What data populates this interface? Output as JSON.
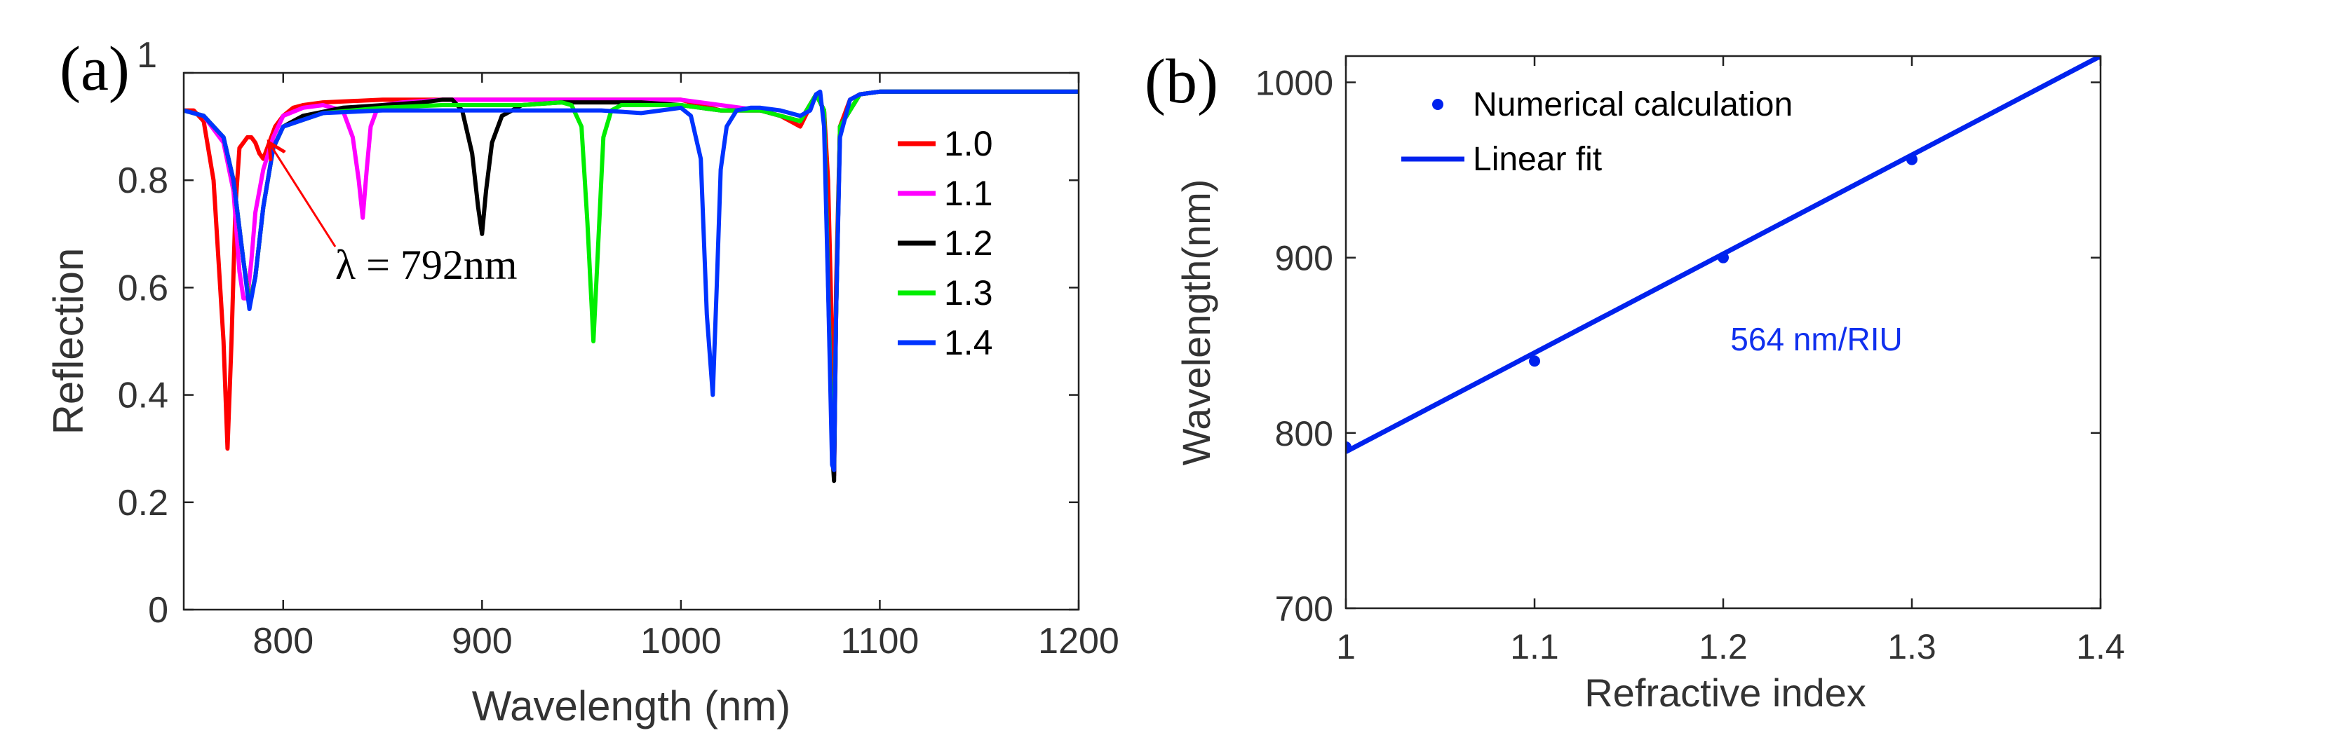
{
  "chart_data": [
    {
      "type": "line",
      "panel_label": "(a)",
      "xlabel": "Wavelength (nm)",
      "ylabel": "Reflection",
      "xlim": [
        750,
        1200
      ],
      "ylim": [
        0,
        1
      ],
      "xticks": [
        800,
        900,
        1000,
        1100,
        1200
      ],
      "yticks": [
        0,
        0.2,
        0.4,
        0.6,
        0.8,
        1
      ],
      "ytick_labels": [
        "0",
        "0.2",
        "0.4",
        "0.6",
        "0.8",
        "1"
      ],
      "legend_position": "right",
      "annotation": {
        "text": "λ = 792nm",
        "arrow_to": [
          792,
          0.88
        ]
      },
      "series": [
        {
          "name": "1.0",
          "color": "#ff0000",
          "x": [
            750,
            755,
            760,
            765,
            770,
            772,
            774,
            776,
            778,
            780,
            782,
            784,
            786,
            788,
            790,
            792,
            796,
            800,
            805,
            810,
            820,
            850,
            880,
            900,
            920,
            950,
            980,
            1000,
            1010,
            1020,
            1030,
            1040,
            1050,
            1055,
            1060,
            1064,
            1068,
            1072,
            1074,
            1076,
            1077,
            1078,
            1080,
            1085,
            1090,
            1100,
            1120,
            1150,
            1200
          ],
          "y": [
            0.93,
            0.93,
            0.91,
            0.8,
            0.5,
            0.3,
            0.5,
            0.75,
            0.86,
            0.87,
            0.88,
            0.88,
            0.87,
            0.85,
            0.84,
            0.86,
            0.9,
            0.92,
            0.935,
            0.94,
            0.945,
            0.95,
            0.95,
            0.95,
            0.95,
            0.95,
            0.95,
            0.95,
            0.94,
            0.93,
            0.93,
            0.93,
            0.92,
            0.91,
            0.9,
            0.93,
            0.96,
            0.93,
            0.8,
            0.5,
            0.25,
            0.6,
            0.9,
            0.95,
            0.96,
            0.965,
            0.965,
            0.965,
            0.965
          ]
        },
        {
          "name": "1.1",
          "color": "#ff00ff",
          "x": [
            750,
            760,
            770,
            775,
            778,
            780,
            782,
            784,
            786,
            790,
            795,
            800,
            810,
            820,
            830,
            835,
            838,
            840,
            842,
            844,
            847,
            850,
            860,
            880,
            900,
            950,
            1000,
            1020,
            1040,
            1060,
            1068,
            1072,
            1076,
            1077,
            1078,
            1080,
            1090,
            1100,
            1150,
            1200
          ],
          "y": [
            0.93,
            0.92,
            0.87,
            0.78,
            0.63,
            0.58,
            0.58,
            0.65,
            0.74,
            0.82,
            0.88,
            0.92,
            0.935,
            0.94,
            0.93,
            0.88,
            0.8,
            0.73,
            0.82,
            0.9,
            0.93,
            0.94,
            0.945,
            0.95,
            0.95,
            0.95,
            0.95,
            0.94,
            0.93,
            0.91,
            0.96,
            0.93,
            0.3,
            0.25,
            0.55,
            0.9,
            0.96,
            0.965,
            0.965,
            0.965
          ]
        },
        {
          "name": "1.2",
          "color": "#000000",
          "x": [
            750,
            760,
            770,
            775,
            780,
            783,
            786,
            790,
            795,
            800,
            810,
            830,
            850,
            870,
            880,
            885,
            890,
            895,
            898,
            900,
            902,
            905,
            910,
            920,
            940,
            960,
            980,
            1000,
            1020,
            1040,
            1060,
            1068,
            1072,
            1076,
            1077,
            1078,
            1080,
            1090,
            1100,
            1150,
            1200
          ],
          "y": [
            0.93,
            0.92,
            0.88,
            0.8,
            0.65,
            0.57,
            0.62,
            0.75,
            0.86,
            0.9,
            0.92,
            0.935,
            0.94,
            0.945,
            0.95,
            0.95,
            0.93,
            0.85,
            0.75,
            0.7,
            0.78,
            0.87,
            0.92,
            0.94,
            0.945,
            0.945,
            0.945,
            0.94,
            0.93,
            0.93,
            0.91,
            0.96,
            0.93,
            0.3,
            0.24,
            0.55,
            0.9,
            0.96,
            0.965,
            0.965,
            0.965
          ]
        },
        {
          "name": "1.3",
          "color": "#00ee00",
          "x": [
            750,
            760,
            770,
            775,
            780,
            783,
            786,
            790,
            795,
            800,
            820,
            850,
            880,
            900,
            920,
            940,
            945,
            950,
            953,
            956,
            958,
            961,
            965,
            970,
            980,
            1000,
            1020,
            1040,
            1060,
            1068,
            1072,
            1076,
            1077,
            1078,
            1080,
            1090,
            1100,
            1150,
            1200
          ],
          "y": [
            0.93,
            0.92,
            0.88,
            0.8,
            0.65,
            0.57,
            0.62,
            0.75,
            0.86,
            0.9,
            0.925,
            0.935,
            0.94,
            0.94,
            0.94,
            0.945,
            0.94,
            0.9,
            0.72,
            0.5,
            0.65,
            0.88,
            0.93,
            0.94,
            0.94,
            0.94,
            0.93,
            0.93,
            0.91,
            0.96,
            0.93,
            0.3,
            0.28,
            0.55,
            0.9,
            0.96,
            0.965,
            0.965,
            0.965
          ]
        },
        {
          "name": "1.4",
          "color": "#0033ff",
          "x": [
            750,
            760,
            770,
            775,
            780,
            783,
            786,
            790,
            795,
            800,
            820,
            850,
            880,
            900,
            920,
            940,
            960,
            980,
            990,
            1000,
            1005,
            1010,
            1013,
            1016,
            1018,
            1020,
            1023,
            1028,
            1035,
            1040,
            1050,
            1060,
            1065,
            1068,
            1070,
            1072,
            1074,
            1076,
            1077,
            1078,
            1080,
            1085,
            1090,
            1100,
            1150,
            1200
          ],
          "y": [
            0.93,
            0.92,
            0.88,
            0.8,
            0.65,
            0.56,
            0.62,
            0.75,
            0.86,
            0.9,
            0.925,
            0.93,
            0.93,
            0.93,
            0.93,
            0.93,
            0.93,
            0.925,
            0.93,
            0.935,
            0.92,
            0.84,
            0.55,
            0.4,
            0.6,
            0.82,
            0.9,
            0.93,
            0.935,
            0.935,
            0.93,
            0.92,
            0.93,
            0.96,
            0.965,
            0.9,
            0.6,
            0.27,
            0.26,
            0.55,
            0.88,
            0.95,
            0.96,
            0.965,
            0.965,
            0.965
          ]
        }
      ]
    },
    {
      "type": "scatter",
      "panel_label": "(b)",
      "xlabel": "Refractive index",
      "ylabel": "Wavelength(nm)",
      "xlim": [
        1,
        1.4
      ],
      "ylim": [
        700,
        1015
      ],
      "xticks": [
        1,
        1.1,
        1.2,
        1.3,
        1.4
      ],
      "xtick_labels": [
        "1",
        "1.1",
        "1.2",
        "1.3",
        "1.4"
      ],
      "yticks": [
        700,
        800,
        900,
        1000
      ],
      "legend_position": "top-left",
      "annotation": {
        "text": "564 nm/RIU"
      },
      "series": [
        {
          "name": "Numerical calculation",
          "color": "#0022ee",
          "style": "marker",
          "x": [
            1.0,
            1.1,
            1.2,
            1.3,
            1.4
          ],
          "y": [
            792,
            841,
            900,
            956,
            1016
          ]
        },
        {
          "name": "Linear fit",
          "color": "#0022ee",
          "style": "line",
          "x": [
            1.0,
            1.4
          ],
          "y": [
            789.3,
            1015
          ]
        }
      ]
    }
  ]
}
